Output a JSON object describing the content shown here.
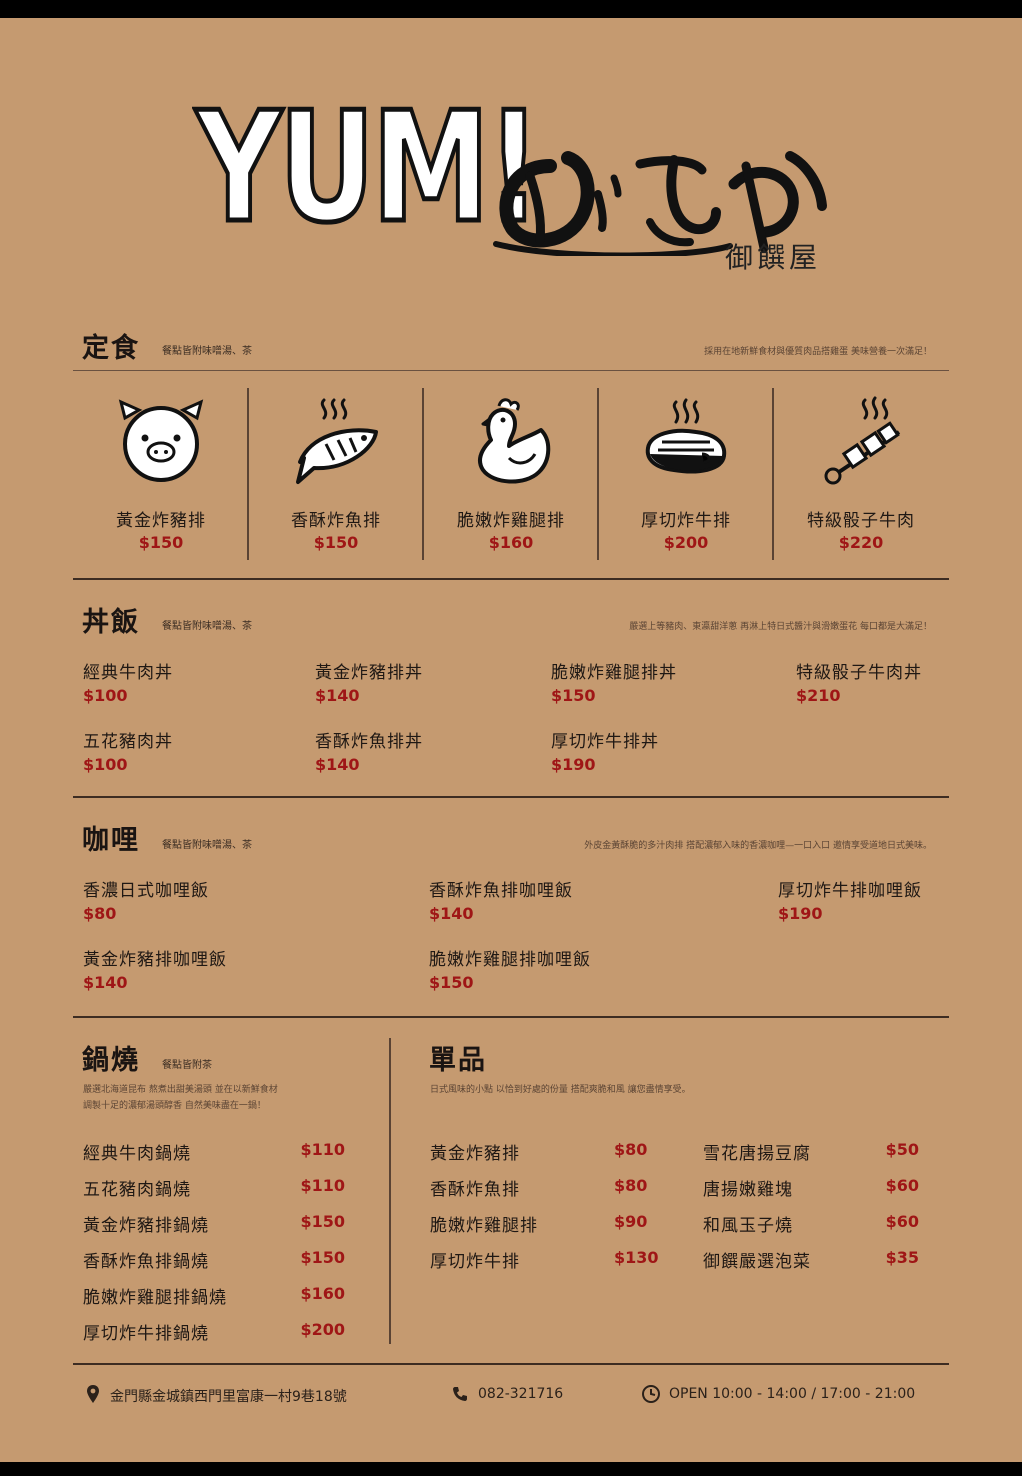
{
  "header": {
    "logo_text": "YUM!",
    "logo_script": "おふや",
    "logo_sub": "御饌屋"
  },
  "colors": {
    "paper": "#c59a70",
    "price": "#9f1616",
    "ink": "#1a1412"
  },
  "set_meals": {
    "title": "定食",
    "note": "餐點皆附味噌湯、茶",
    "desc": "採用在地新鮮食材與優質肉品搭雞蛋 美味營養一次滿足！",
    "items": [
      {
        "name": "黃金炸豬排",
        "price": "$150",
        "icon": "pig-icon"
      },
      {
        "name": "香酥炸魚排",
        "price": "$150",
        "icon": "fish-icon"
      },
      {
        "name": "脆嫩炸雞腿排",
        "price": "$160",
        "icon": "chicken-icon"
      },
      {
        "name": "厚切炸牛排",
        "price": "$200",
        "icon": "steak-icon"
      },
      {
        "name": "特級骰子牛肉",
        "price": "$220",
        "icon": "skewer-icon"
      }
    ]
  },
  "donburi": {
    "title": "丼飯",
    "note": "餐點皆附味噌湯、茶",
    "desc": "嚴選上等豬肉、東瀛甜洋蔥 再淋上特日式醬汁與滑嫩蛋花 每口都是大滿足！",
    "items": [
      {
        "name": "經典牛肉丼",
        "price": "$100"
      },
      {
        "name": "黃金炸豬排丼",
        "price": "$140"
      },
      {
        "name": "脆嫩炸雞腿排丼",
        "price": "$150"
      },
      {
        "name": "特級骰子牛肉丼",
        "price": "$210"
      },
      {
        "name": "五花豬肉丼",
        "price": "$100"
      },
      {
        "name": "香酥炸魚排丼",
        "price": "$140"
      },
      {
        "name": "厚切炸牛排丼",
        "price": "$190"
      }
    ]
  },
  "curry": {
    "title": "咖哩",
    "note": "餐點皆附味噌湯、茶",
    "desc": "外皮金黃酥脆的多汁肉排 搭配濃郁入味的香濃咖哩—一口入口 邀情享受道地日式美味。",
    "items": [
      {
        "name": "香濃日式咖哩飯",
        "price": "$80"
      },
      {
        "name": "香酥炸魚排咖哩飯",
        "price": "$140"
      },
      {
        "name": "厚切炸牛排咖哩飯",
        "price": "$190"
      },
      {
        "name": "黃金炸豬排咖哩飯",
        "price": "$140"
      },
      {
        "name": "脆嫩炸雞腿排咖哩飯",
        "price": "$150"
      }
    ]
  },
  "nabeyaki": {
    "title": "鍋燒",
    "note": "餐點皆附茶",
    "desc1": "嚴選北海道昆布 熬煮出甜美湯頭 並在以新鮮食材",
    "desc2": "調製十足的濃郁湯頭醇香 自然美味盡在一鍋！",
    "items": [
      {
        "name": "經典牛肉鍋燒",
        "price": "$110"
      },
      {
        "name": "五花豬肉鍋燒",
        "price": "$110"
      },
      {
        "name": "黃金炸豬排鍋燒",
        "price": "$150"
      },
      {
        "name": "香酥炸魚排鍋燒",
        "price": "$150"
      },
      {
        "name": "脆嫩炸雞腿排鍋燒",
        "price": "$160"
      },
      {
        "name": "厚切炸牛排鍋燒",
        "price": "$200"
      }
    ]
  },
  "single": {
    "title": "單品",
    "desc": "日式風味的小點 以恰到好處的份量 搭配爽脆和風 讓您盡情享受。",
    "left": [
      {
        "name": "黃金炸豬排",
        "price": "$80"
      },
      {
        "name": "香酥炸魚排",
        "price": "$80"
      },
      {
        "name": "脆嫩炸雞腿排",
        "price": "$90"
      },
      {
        "name": "厚切炸牛排",
        "price": "$130"
      }
    ],
    "right": [
      {
        "name": "雪花唐揚豆腐",
        "price": "$50"
      },
      {
        "name": "唐揚嫩雞塊",
        "price": "$60"
      },
      {
        "name": "和風玉子燒",
        "price": "$60"
      },
      {
        "name": "御饌嚴選泡菜",
        "price": "$35"
      }
    ]
  },
  "footer": {
    "address": "金門縣金城鎮西門里富康一村9巷18號",
    "phone": "082-321716",
    "hours": "OPEN 10:00 - 14:00 / 17:00 - 21:00"
  }
}
